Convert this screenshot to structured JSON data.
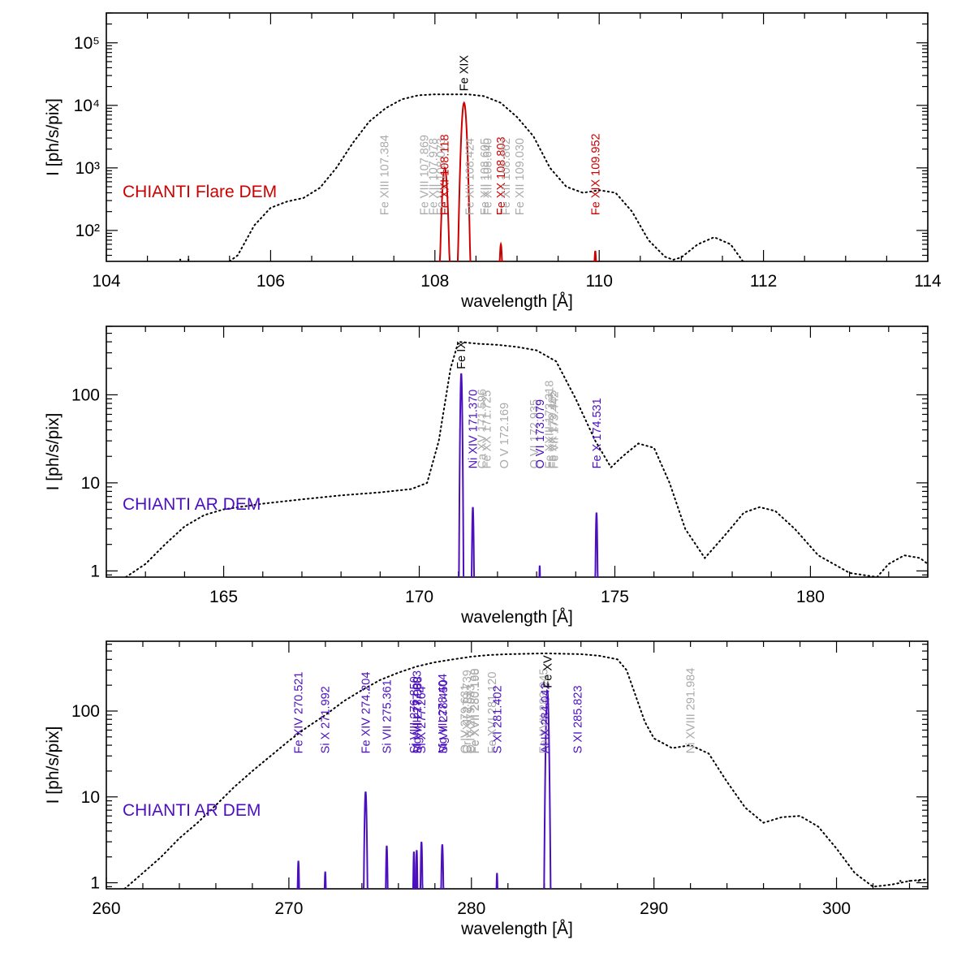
{
  "colors": {
    "flare": "#cc0000",
    "ar": "#4b0fc0",
    "faint": "#aaaaaa",
    "main": "#000000",
    "model": "#000000"
  },
  "chart_data": [
    {
      "type": "line",
      "panel_label": "CHIANTI Flare DEM",
      "color": "flare",
      "xlabel": "wavelength [Å]",
      "ylabel": "I [ph/s/pix]",
      "xlim": [
        104,
        114
      ],
      "ylim": [
        32,
        300000
      ],
      "log_y": true,
      "x_ticks": [
        104,
        106,
        108,
        110,
        112,
        114
      ],
      "x_tick_labels": [
        "104",
        "106",
        "108",
        "110",
        "112",
        "114"
      ],
      "y_ticks": [
        100,
        1000,
        10000,
        100000
      ],
      "y_tick_labels": [
        "10²",
        "10³",
        "10⁴",
        "10⁵"
      ],
      "label_baseline": 175,
      "main_label": {
        "text": "Fe XIX",
        "wavelength": 108.355,
        "y": 15000.0
      },
      "lines": [
        {
          "text": "Fe XIII 107.384",
          "wavelength": 107.384,
          "style": "faint"
        },
        {
          "text": "Fe VIII 107.869",
          "wavelength": 107.869,
          "style": "faint"
        },
        {
          "text": "Fe XII 107.978",
          "wavelength": 107.978,
          "style": "faint"
        },
        {
          "text": "Fe VII 108.073",
          "wavelength": 108.073,
          "style": "faint"
        },
        {
          "text": "Fe XXI 108.118",
          "wavelength": 108.118,
          "style": "strong"
        },
        {
          "text": "Fe XII 108.424",
          "wavelength": 108.424,
          "style": "faint"
        },
        {
          "text": "Fe XII 108.605",
          "wavelength": 108.605,
          "style": "faint"
        },
        {
          "text": "Fe XII 108.640",
          "wavelength": 108.64,
          "style": "faint"
        },
        {
          "text": "Fe XX 108.803",
          "wavelength": 108.803,
          "style": "strong"
        },
        {
          "text": "Fe XII 108.862",
          "wavelength": 108.862,
          "style": "faint"
        },
        {
          "text": "Fe XII 109.030",
          "wavelength": 109.03,
          "style": "faint"
        },
        {
          "text": "Fe XIX 109.952",
          "wavelength": 109.952,
          "style": "strong"
        }
      ],
      "peaks": [
        {
          "wavelength": 108.12,
          "value": 1000,
          "sigma": 0.022
        },
        {
          "wavelength": 108.355,
          "value": 11000,
          "sigma": 0.022
        },
        {
          "wavelength": 108.803,
          "value": 60,
          "sigma": 0.012
        },
        {
          "wavelength": 109.952,
          "value": 47,
          "sigma": 0.01
        }
      ],
      "model_curve": {
        "x": [
          105.5,
          105.6,
          105.8,
          106.0,
          106.2,
          106.4,
          106.6,
          106.8,
          107.0,
          107.2,
          107.4,
          107.6,
          107.8,
          108.0,
          108.2,
          108.4,
          108.6,
          108.8,
          109.0,
          109.2,
          109.4,
          109.6,
          109.8,
          110.0,
          110.2,
          110.4,
          110.6,
          110.8,
          110.9,
          111.0,
          111.2,
          111.4,
          111.6,
          111.75
        ],
        "y": [
          32,
          40,
          120,
          230,
          290,
          330,
          480,
          1000,
          2500,
          5500,
          9000,
          12500,
          14500,
          15000,
          15000,
          15000,
          14000,
          11000,
          6500,
          3200,
          1000,
          500,
          400,
          440,
          400,
          200,
          70,
          38,
          34,
          37,
          60,
          78,
          60,
          32
        ]
      },
      "tail_dots": {
        "x": [
          104.9,
          105.0
        ],
        "y": 34
      }
    },
    {
      "type": "line",
      "panel_label": "CHIANTI AR DEM",
      "color": "ar",
      "xlabel": "wavelength [Å]",
      "ylabel": "I [ph/s/pix]",
      "xlim": [
        162,
        183
      ],
      "ylim": [
        0.85,
        600
      ],
      "log_y": true,
      "x_ticks": [
        165,
        170,
        175,
        180
      ],
      "x_tick_labels": [
        "165",
        "170",
        "175",
        "180"
      ],
      "y_ticks": [
        1,
        10,
        100
      ],
      "y_tick_labels": [
        "1",
        "10",
        "100"
      ],
      "label_baseline": 14.5,
      "main_label": {
        "text": "Fe IX",
        "wavelength": 171.073,
        "y": 180
      },
      "lines": [
        {
          "text": "Ni XIV 171.370",
          "wavelength": 171.37,
          "style": "strong"
        },
        {
          "text": "Ca XV 171.596",
          "wavelength": 171.596,
          "style": "faint"
        },
        {
          "text": "Fe XX 171.725",
          "wavelength": 171.725,
          "style": "faint"
        },
        {
          "text": "O V 172.169",
          "wavelength": 172.169,
          "style": "faint"
        },
        {
          "text": "O VI 172.935",
          "wavelength": 172.935,
          "style": "faint"
        },
        {
          "text": "O VI 173.079",
          "wavelength": 173.079,
          "style": "strong"
        },
        {
          "text": "Fe XXIII 173.318",
          "wavelength": 173.318,
          "style": "faint"
        },
        {
          "text": "Fe XX 173.405",
          "wavelength": 173.405,
          "style": "faint"
        },
        {
          "text": "Fe VII 173.442",
          "wavelength": 173.442,
          "style": "faint"
        },
        {
          "text": "Fe X 174.531",
          "wavelength": 174.531,
          "style": "strong"
        }
      ],
      "peaks": [
        {
          "wavelength": 171.073,
          "value": 175,
          "sigma": 0.018
        },
        {
          "wavelength": 171.37,
          "value": 5.3,
          "sigma": 0.016
        },
        {
          "wavelength": 173.079,
          "value": 1.15,
          "sigma": 0.012
        },
        {
          "wavelength": 174.531,
          "value": 4.6,
          "sigma": 0.016
        }
      ],
      "model_curve": {
        "x": [
          162.5,
          163.0,
          163.5,
          164.0,
          164.5,
          165.0,
          166.0,
          167.0,
          168.0,
          169.0,
          169.8,
          170.2,
          170.5,
          170.8,
          171.0,
          171.5,
          172.0,
          172.5,
          173.0,
          173.5,
          174.0,
          174.5,
          174.9,
          175.2,
          175.6,
          176.0,
          176.4,
          176.8,
          177.3,
          177.8,
          178.3,
          178.7,
          179.1,
          179.6,
          180.2,
          181.0,
          181.7,
          182.0,
          182.4,
          182.8,
          183.0
        ],
        "y": [
          0.85,
          1.2,
          2.0,
          3.2,
          4.3,
          5.0,
          5.8,
          6.5,
          7.2,
          7.8,
          8.5,
          10,
          30,
          200,
          400,
          380,
          370,
          350,
          320,
          240,
          90,
          30,
          15,
          20,
          28,
          25,
          10,
          3,
          1.4,
          2.5,
          4.6,
          5.3,
          4.8,
          3,
          1.5,
          0.95,
          0.85,
          1.2,
          1.5,
          1.4,
          1.2
        ]
      }
    },
    {
      "type": "line",
      "panel_label": "CHIANTI AR DEM",
      "color": "ar",
      "xlabel": "wavelength [Å]",
      "ylabel": "I [ph/s/pix]",
      "xlim": [
        260,
        305
      ],
      "ylim": [
        0.85,
        650
      ],
      "log_y": true,
      "x_ticks": [
        260,
        270,
        280,
        290,
        300
      ],
      "x_tick_labels": [
        "260",
        "270",
        "280",
        "290",
        "300"
      ],
      "y_ticks": [
        1,
        10,
        100
      ],
      "y_tick_labels": [
        "1",
        "10",
        "100"
      ],
      "label_baseline": 32,
      "main_label": {
        "text": "Fe XV",
        "wavelength": 284.16,
        "y": 170
      },
      "lines": [
        {
          "text": "Fe XIV 270.521",
          "wavelength": 270.521,
          "style": "strong"
        },
        {
          "text": "Si X 271.992",
          "wavelength": 271.992,
          "style": "strong"
        },
        {
          "text": "Fe XIV 274.204",
          "wavelength": 274.204,
          "style": "strong"
        },
        {
          "text": "Si VII 275.361",
          "wavelength": 275.361,
          "style": "strong"
        },
        {
          "text": "Si VIII 276.850",
          "wavelength": 276.85,
          "style": "strong"
        },
        {
          "text": "Mg VIII 277.003",
          "wavelength": 277.003,
          "style": "strong"
        },
        {
          "text": "Si VIII 277.058",
          "wavelength": 277.058,
          "style": "strong"
        },
        {
          "text": "Si X 277.264",
          "wavelength": 277.264,
          "style": "strong"
        },
        {
          "text": "Mg VII 278.404",
          "wavelength": 278.404,
          "style": "strong"
        },
        {
          "text": "Si VII 278.450",
          "wavelength": 278.45,
          "style": "strong"
        },
        {
          "text": "O IV 279.631",
          "wavelength": 279.631,
          "style": "faint"
        },
        {
          "text": "Cr XXII 279.739",
          "wavelength": 279.739,
          "style": "faint"
        },
        {
          "text": "O IV 279.933",
          "wavelength": 279.933,
          "style": "faint"
        },
        {
          "text": "Fe XVII 280.160",
          "wavelength": 280.16,
          "style": "faint"
        },
        {
          "text": "Fe XVII 280.198",
          "wavelength": 280.198,
          "style": "faint"
        },
        {
          "text": "Fe XVI 281.120",
          "wavelength": 281.12,
          "style": "faint"
        },
        {
          "text": "S XI 281.402",
          "wavelength": 281.402,
          "style": "strong"
        },
        {
          "text": "Fe XVII 283.945",
          "wavelength": 283.945,
          "style": "faint"
        },
        {
          "text": "Al IX 284.042",
          "wavelength": 284.042,
          "style": "strong"
        },
        {
          "text": "S XI 285.823",
          "wavelength": 285.823,
          "style": "strong"
        },
        {
          "text": "Ni XVIII 291.984",
          "wavelength": 291.984,
          "style": "faint"
        }
      ],
      "peaks": [
        {
          "wavelength": 270.521,
          "value": 1.8,
          "sigma": 0.035
        },
        {
          "wavelength": 271.992,
          "value": 1.35,
          "sigma": 0.035
        },
        {
          "wavelength": 274.204,
          "value": 11.5,
          "sigma": 0.045
        },
        {
          "wavelength": 275.361,
          "value": 2.7,
          "sigma": 0.035
        },
        {
          "wavelength": 276.85,
          "value": 2.3,
          "sigma": 0.03
        },
        {
          "wavelength": 277.003,
          "value": 2.4,
          "sigma": 0.03
        },
        {
          "wavelength": 277.264,
          "value": 3.0,
          "sigma": 0.035
        },
        {
          "wavelength": 278.404,
          "value": 2.8,
          "sigma": 0.04
        },
        {
          "wavelength": 281.402,
          "value": 1.3,
          "sigma": 0.03
        },
        {
          "wavelength": 284.16,
          "value": 175,
          "sigma": 0.055
        }
      ],
      "model_curve": {
        "x": [
          261.0,
          262.0,
          263.0,
          264.0,
          265.0,
          266.0,
          267.0,
          268.0,
          269.0,
          270.0,
          271.0,
          272.0,
          273.0,
          274.0,
          275.0,
          276.0,
          277.0,
          278.0,
          279.0,
          280.0,
          281.0,
          282.0,
          283.0,
          284.0,
          285.0,
          286.0,
          287.0,
          288.0,
          288.5,
          289.0,
          289.5,
          290.0,
          291.0,
          292.0,
          293.0,
          294.0,
          295.0,
          296.0,
          297.0,
          298.0,
          299.0,
          300.0,
          301.0,
          302.0,
          303.0,
          304.0,
          305.0
        ],
        "y": [
          0.85,
          1.3,
          2.0,
          3.3,
          5.0,
          8.0,
          13,
          20,
          30,
          45,
          65,
          90,
          130,
          175,
          230,
          280,
          330,
          370,
          400,
          430,
          450,
          460,
          465,
          470,
          465,
          460,
          440,
          400,
          300,
          150,
          75,
          48,
          37,
          40,
          32,
          15,
          7.5,
          5.0,
          5.8,
          6.0,
          4.5,
          2.5,
          1.3,
          0.9,
          0.95,
          1.05,
          1.1
        ]
      },
      "tail_dots": {
        "x": [
          303.5,
          304.0,
          304.5
        ],
        "y": 1.05
      }
    }
  ]
}
